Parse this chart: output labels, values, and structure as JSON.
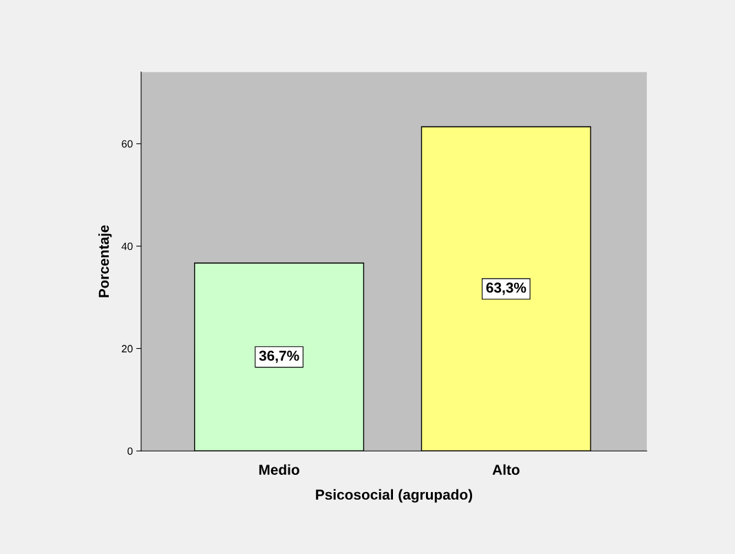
{
  "chart_data": {
    "type": "bar",
    "xlabel": "Psicosocial (agrupado)",
    "ylabel": "Porcentaje",
    "categories": [
      "Medio",
      "Alto"
    ],
    "values": [
      36.7,
      63.3
    ],
    "colors": [
      "#ccffcc",
      "#ffff80"
    ],
    "value_labels": [
      "36,7%",
      "63,3%"
    ],
    "ylim": [
      0,
      74
    ],
    "yticks": [
      0,
      20,
      40,
      60
    ],
    "grid": false,
    "legend": false
  }
}
